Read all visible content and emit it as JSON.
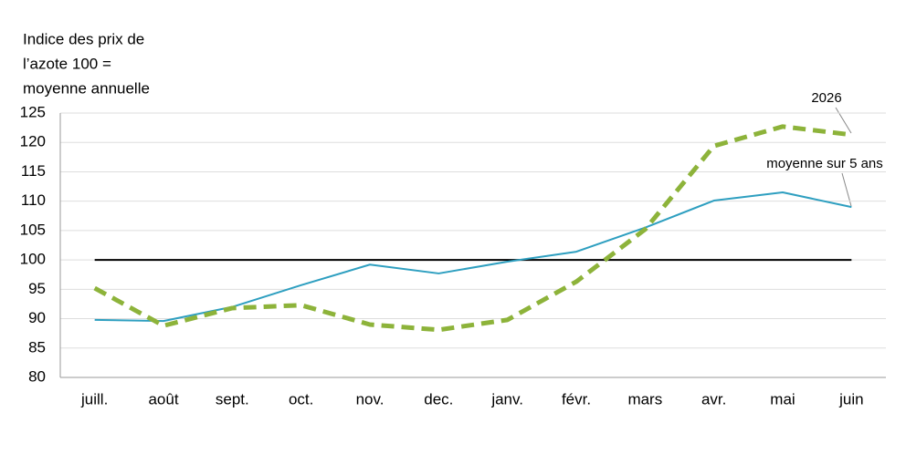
{
  "chart_data": {
    "type": "line",
    "y_axis_label": [
      "Indice des prix de",
      "l’azote 100 =",
      "moyenne annuelle"
    ],
    "categories": [
      "juill.",
      "août",
      "sept.",
      "oct.",
      "nov.",
      "dec.",
      "janv.",
      "févr.",
      "mars",
      "avr.",
      "mai",
      "juin"
    ],
    "series": [
      {
        "name": "moyenne sur 5 ans",
        "color": "#2e9fc0",
        "dashed": false,
        "values": [
          89.8,
          89.6,
          92.0,
          95.7,
          99.2,
          97.7,
          99.7,
          101.4,
          105.5,
          110.1,
          111.5,
          109.0
        ]
      },
      {
        "name": "2026",
        "color": "#8db33a",
        "dashed": true,
        "values": [
          95.2,
          88.8,
          91.8,
          92.3,
          89.0,
          88.1,
          89.8,
          96.3,
          105.2,
          119.4,
          122.7,
          121.3
        ]
      }
    ],
    "reference_line": 100,
    "ylim": [
      80,
      125
    ],
    "yticks": [
      80,
      85,
      90,
      95,
      100,
      105,
      110,
      115,
      120,
      125
    ],
    "grid": true
  }
}
